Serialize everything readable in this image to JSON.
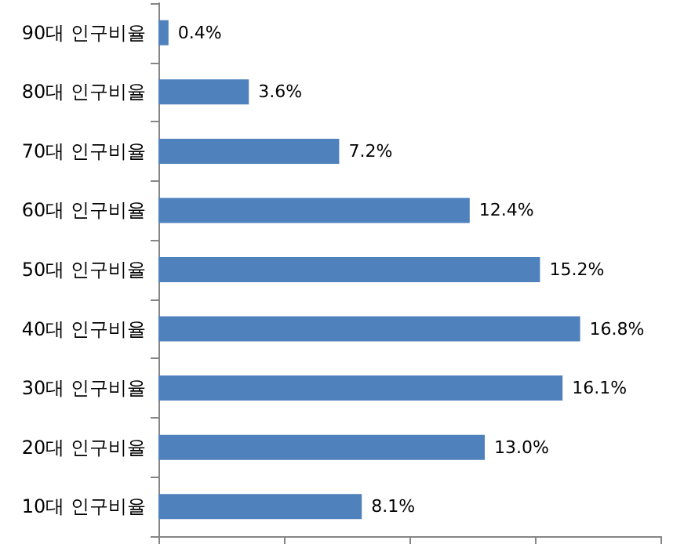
{
  "chart_data": {
    "type": "bar",
    "orientation": "horizontal",
    "categories": [
      "90대 인구비율",
      "80대 인구비율",
      "70대 인구비율",
      "60대 인구비율",
      "50대 인구비율",
      "40대 인구비율",
      "30대 인구비율",
      "20대 인구비율",
      "10대 인구비율"
    ],
    "values": [
      0.4,
      3.6,
      7.2,
      12.4,
      15.2,
      16.8,
      16.1,
      13.0,
      8.1
    ],
    "value_labels": [
      "0.4%",
      "3.6%",
      "7.2%",
      "12.4%",
      "15.2%",
      "16.8%",
      "16.1%",
      "13.0%",
      "8.1%"
    ],
    "color": "#4f81bd",
    "xlim": [
      0,
      20
    ],
    "xticks": [
      {
        "value": 0,
        "label": null
      },
      {
        "value": 5,
        "label": null
      },
      {
        "value": 10,
        "label": null
      },
      {
        "value": 15,
        "label": null
      },
      {
        "value": 20,
        "label": null
      }
    ],
    "tick_labels": "y",
    "grid": false
  }
}
